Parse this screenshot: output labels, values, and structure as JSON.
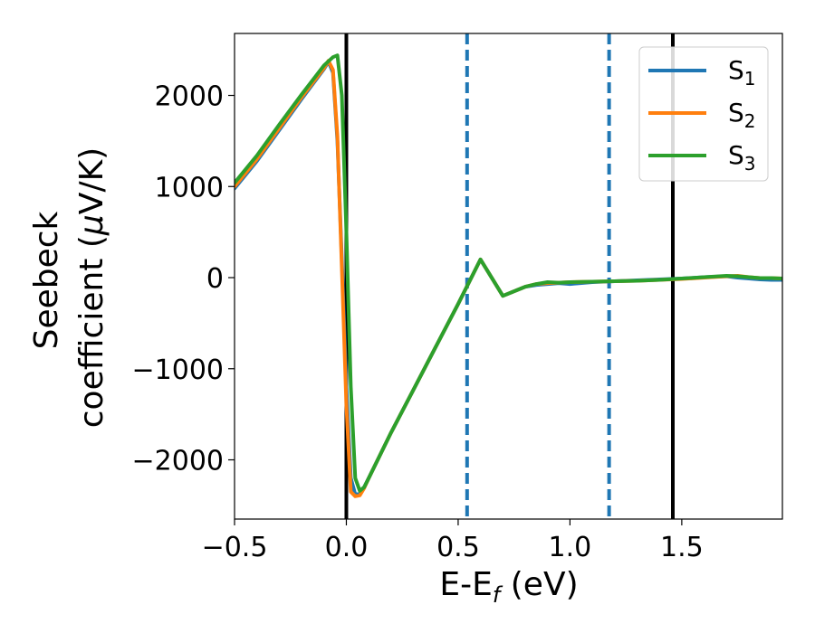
{
  "chart_data": {
    "type": "line",
    "xlabel": "E-E",
    "xlabel_sub": "f",
    "xlabel_unit": " (eV)",
    "ylabel_line1": "Seebeck",
    "ylabel_line2": "coefficient  (",
    "ylabel_mu": "μ",
    "ylabel_unit": "V/K)",
    "xlim": [
      -0.5,
      1.95
    ],
    "ylim": [
      -2650,
      2680
    ],
    "xticks": [
      -0.5,
      0.0,
      0.5,
      1.0,
      1.5
    ],
    "xtick_labels": [
      "−0.5",
      "0.0",
      "0.5",
      "1.0",
      "1.5"
    ],
    "yticks": [
      -2000,
      -1000,
      0,
      1000,
      2000
    ],
    "ytick_labels": [
      "−2000",
      "−1000",
      "0",
      "1000",
      "2000"
    ],
    "grid": false,
    "legend_position": "top-right",
    "vlines": [
      {
        "x": 0.0,
        "style": "solid",
        "color": "#000000"
      },
      {
        "x": 1.46,
        "style": "solid",
        "color": "#000000"
      },
      {
        "x": 0.54,
        "style": "dashed",
        "color": "#1f77b4"
      },
      {
        "x": 1.175,
        "style": "dashed",
        "color": "#1f77b4"
      }
    ],
    "series": [
      {
        "name": "S",
        "sub": "1",
        "color": "#1f77b4",
        "x": [
          -0.5,
          -0.4,
          -0.3,
          -0.2,
          -0.1,
          -0.08,
          -0.06,
          -0.04,
          -0.02,
          0.0,
          0.02,
          0.04,
          0.06,
          0.08,
          0.1,
          0.2,
          0.3,
          0.4,
          0.5,
          0.6,
          0.7,
          0.75,
          0.8,
          0.85,
          0.9,
          0.95,
          1.0,
          1.1,
          1.2,
          1.3,
          1.4,
          1.5,
          1.6,
          1.7,
          1.75,
          1.8,
          1.85,
          1.9,
          1.95
        ],
        "y": [
          980,
          1280,
          1620,
          1960,
          2290,
          2370,
          2250,
          1500,
          200,
          -1200,
          -2200,
          -2380,
          -2370,
          -2300,
          -2200,
          -1700,
          -1230,
          -760,
          -290,
          200,
          -200,
          -150,
          -100,
          -80,
          -70,
          -60,
          -70,
          -50,
          -40,
          -30,
          -20,
          -10,
          5,
          15,
          0,
          -10,
          -20,
          -25,
          -25
        ]
      },
      {
        "name": "S",
        "sub": "2",
        "color": "#ff7f0e",
        "x": [
          -0.5,
          -0.4,
          -0.3,
          -0.2,
          -0.1,
          -0.08,
          -0.06,
          -0.04,
          -0.02,
          0.0,
          0.02,
          0.04,
          0.06,
          0.08,
          0.1,
          0.2,
          0.3,
          0.4,
          0.5,
          0.6,
          0.7,
          0.75,
          0.8,
          0.85,
          0.9,
          0.95,
          1.0,
          1.1,
          1.2,
          1.3,
          1.4,
          1.5,
          1.6,
          1.7,
          1.75,
          1.8,
          1.85,
          1.9,
          1.95
        ],
        "y": [
          1000,
          1300,
          1640,
          1980,
          2300,
          2380,
          2280,
          1550,
          100,
          -1400,
          -2350,
          -2400,
          -2390,
          -2310,
          -2200,
          -1700,
          -1230,
          -760,
          -290,
          200,
          -200,
          -150,
          -100,
          -70,
          -60,
          -55,
          -50,
          -45,
          -40,
          -35,
          -25,
          -15,
          0,
          15,
          20,
          5,
          -5,
          -5,
          -10
        ]
      },
      {
        "name": "S",
        "sub": "3",
        "color": "#2ca02c",
        "x": [
          -0.5,
          -0.4,
          -0.3,
          -0.2,
          -0.1,
          -0.06,
          -0.04,
          -0.02,
          0.0,
          0.02,
          0.04,
          0.06,
          0.08,
          0.1,
          0.2,
          0.3,
          0.4,
          0.5,
          0.6,
          0.7,
          0.75,
          0.8,
          0.85,
          0.9,
          0.95,
          1.0,
          1.1,
          1.2,
          1.3,
          1.4,
          1.5,
          1.6,
          1.7,
          1.75,
          1.8,
          1.85,
          1.9,
          1.95
        ],
        "y": [
          1040,
          1340,
          1680,
          2010,
          2330,
          2420,
          2440,
          2000,
          500,
          -1200,
          -2200,
          -2340,
          -2300,
          -2200,
          -1700,
          -1230,
          -760,
          -290,
          200,
          -200,
          -150,
          -100,
          -70,
          -50,
          -55,
          -50,
          -45,
          -40,
          -35,
          -25,
          -10,
          5,
          20,
          15,
          5,
          -5,
          -5,
          -10
        ]
      }
    ]
  }
}
